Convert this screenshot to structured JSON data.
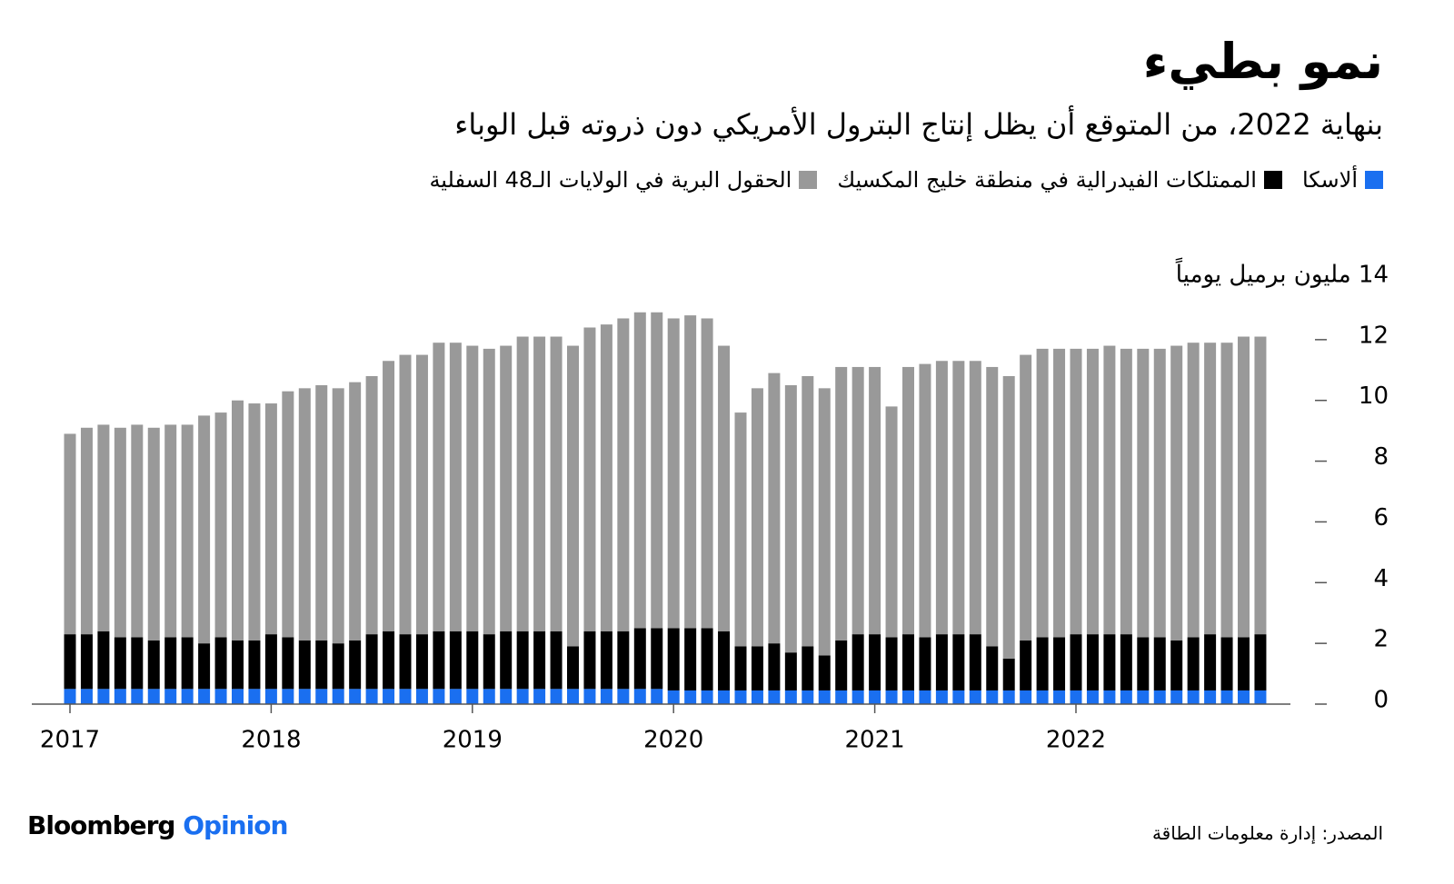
{
  "chart_data": {
    "type": "stacked-bar",
    "title": "نمو بطيء",
    "subtitle": "بنهاية 2022، من المتوقع أن يظل إنتاج البترول الأمريكي دون ذروته قبل الوباء",
    "categories": [
      "2017",
      null,
      null,
      null,
      null,
      null,
      null,
      null,
      null,
      null,
      null,
      null,
      "2018",
      null,
      null,
      null,
      null,
      null,
      null,
      null,
      null,
      null,
      null,
      null,
      "2019",
      null,
      null,
      null,
      null,
      null,
      null,
      null,
      null,
      null,
      null,
      null,
      "2020",
      null,
      null,
      null,
      null,
      null,
      null,
      null,
      null,
      null,
      null,
      null,
      "2021",
      null,
      null,
      null,
      null,
      null,
      null,
      null,
      null,
      null,
      null,
      null,
      "2022",
      null,
      null,
      null,
      null,
      null,
      null,
      null,
      null,
      null,
      null,
      null
    ],
    "series": [
      {
        "name": "ألاسكا",
        "color": "#1a6ff0",
        "values": [
          0.5,
          0.5,
          0.5,
          0.5,
          0.5,
          0.5,
          0.5,
          0.5,
          0.5,
          0.5,
          0.5,
          0.5,
          0.5,
          0.5,
          0.5,
          0.5,
          0.5,
          0.5,
          0.5,
          0.5,
          0.5,
          0.5,
          0.5,
          0.5,
          0.5,
          0.5,
          0.5,
          0.5,
          0.5,
          0.5,
          0.5,
          0.5,
          0.5,
          0.5,
          0.5,
          0.5,
          0.45,
          0.45,
          0.45,
          0.45,
          0.45,
          0.45,
          0.45,
          0.45,
          0.45,
          0.45,
          0.45,
          0.45,
          0.45,
          0.45,
          0.45,
          0.45,
          0.45,
          0.45,
          0.45,
          0.45,
          0.45,
          0.45,
          0.45,
          0.45,
          0.45,
          0.45,
          0.45,
          0.45,
          0.45,
          0.45,
          0.45,
          0.45,
          0.45,
          0.45,
          0.45,
          0.45
        ]
      },
      {
        "name": "الممتلكات الفيدرالية في منطقة خليج المكسيك",
        "color": "#000000",
        "values": [
          1.8,
          1.8,
          1.9,
          1.7,
          1.7,
          1.6,
          1.7,
          1.7,
          1.5,
          1.7,
          1.6,
          1.6,
          1.8,
          1.7,
          1.6,
          1.6,
          1.5,
          1.6,
          1.8,
          1.9,
          1.8,
          1.8,
          1.9,
          1.9,
          1.9,
          1.8,
          1.9,
          1.9,
          1.9,
          1.9,
          1.4,
          1.9,
          1.9,
          1.9,
          2.0,
          2.0,
          2.05,
          2.05,
          2.05,
          1.95,
          1.45,
          1.45,
          1.55,
          1.25,
          1.45,
          1.15,
          1.65,
          1.85,
          1.85,
          1.75,
          1.85,
          1.75,
          1.85,
          1.85,
          1.85,
          1.45,
          1.05,
          1.65,
          1.75,
          1.75,
          1.85,
          1.85,
          1.85,
          1.85,
          1.75,
          1.75,
          1.65,
          1.75,
          1.85,
          1.75,
          1.75,
          1.85
        ]
      },
      {
        "name": "الحقول البرية في الولايات الـ48 السفلية",
        "color": "#999999",
        "values": [
          6.6,
          6.8,
          6.8,
          6.9,
          7.0,
          7.0,
          7.0,
          7.0,
          7.5,
          7.4,
          7.9,
          7.8,
          7.6,
          8.1,
          8.3,
          8.4,
          8.4,
          8.5,
          8.5,
          8.9,
          9.2,
          9.2,
          9.5,
          9.5,
          9.4,
          9.4,
          9.4,
          9.7,
          9.7,
          9.7,
          9.9,
          10.0,
          10.1,
          10.3,
          10.4,
          10.4,
          10.2,
          10.3,
          10.2,
          9.4,
          7.7,
          8.5,
          8.9,
          8.8,
          8.9,
          8.8,
          9.0,
          8.8,
          8.8,
          7.6,
          8.8,
          9.0,
          9.0,
          9.0,
          9.0,
          9.2,
          9.3,
          9.4,
          9.5,
          9.5,
          9.4,
          9.4,
          9.5,
          9.4,
          9.5,
          9.5,
          9.7,
          9.7,
          9.6,
          9.7,
          9.9,
          9.8
        ]
      }
    ],
    "ylim": [
      0,
      14
    ],
    "yticks": [
      0,
      2,
      4,
      6,
      8,
      10,
      12,
      {
        "value": 14,
        "label": "14 مليون برميل يومياً"
      }
    ],
    "source": "المصدر: إدارة معلومات الطاقة",
    "brand": "Bloomberg",
    "brand_sub": "Opinion"
  }
}
